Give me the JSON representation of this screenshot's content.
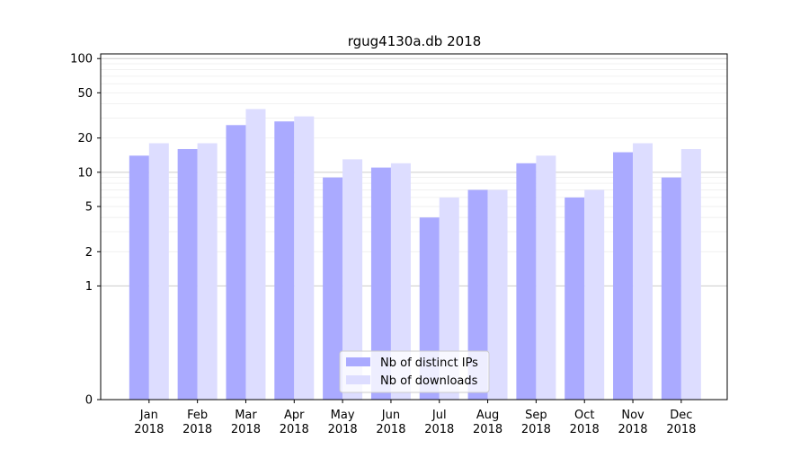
{
  "chart_data": {
    "type": "bar",
    "title": "rgug4130a.db 2018",
    "xlabel": "",
    "ylabel": "",
    "yscale": "symlog",
    "ylim": [
      0,
      110
    ],
    "yticks": [
      0,
      1,
      2,
      5,
      10,
      20,
      50,
      100
    ],
    "grid": "y",
    "legend": "lower-center",
    "categories": [
      [
        "Jan",
        "2018"
      ],
      [
        "Feb",
        "2018"
      ],
      [
        "Mar",
        "2018"
      ],
      [
        "Apr",
        "2018"
      ],
      [
        "May",
        "2018"
      ],
      [
        "Jun",
        "2018"
      ],
      [
        "Jul",
        "2018"
      ],
      [
        "Aug",
        "2018"
      ],
      [
        "Sep",
        "2018"
      ],
      [
        "Oct",
        "2018"
      ],
      [
        "Nov",
        "2018"
      ],
      [
        "Dec",
        "2018"
      ]
    ],
    "series": [
      {
        "name": "Nb of distinct IPs",
        "color": "#aaaaff",
        "values": [
          14,
          16,
          26,
          28,
          9,
          11,
          4,
          7,
          12,
          6,
          15,
          9
        ]
      },
      {
        "name": "Nb of downloads",
        "color": "#ddddff",
        "values": [
          18,
          18,
          36,
          31,
          13,
          12,
          6,
          7,
          14,
          7,
          18,
          16
        ]
      }
    ]
  }
}
